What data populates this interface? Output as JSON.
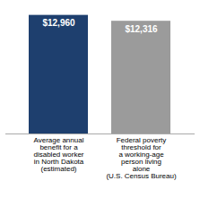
{
  "chart_data": {
    "type": "bar",
    "categories": [
      "Average annual\nbenefit for a\ndisabled worker\nin North Dakota\n(estimated)",
      "Federal poverty\nthreshold for\na working-age\nperson living\nalone\n(U.S. Census Bureau)"
    ],
    "values": [
      12960,
      12316
    ],
    "value_labels": [
      "$12,960",
      "$12,316"
    ],
    "colors": [
      "#1e3f6e",
      "#9b9b9b"
    ],
    "ylim": [
      0,
      14000
    ],
    "data_labels": true,
    "tick_labels": "x",
    "grid": false
  }
}
